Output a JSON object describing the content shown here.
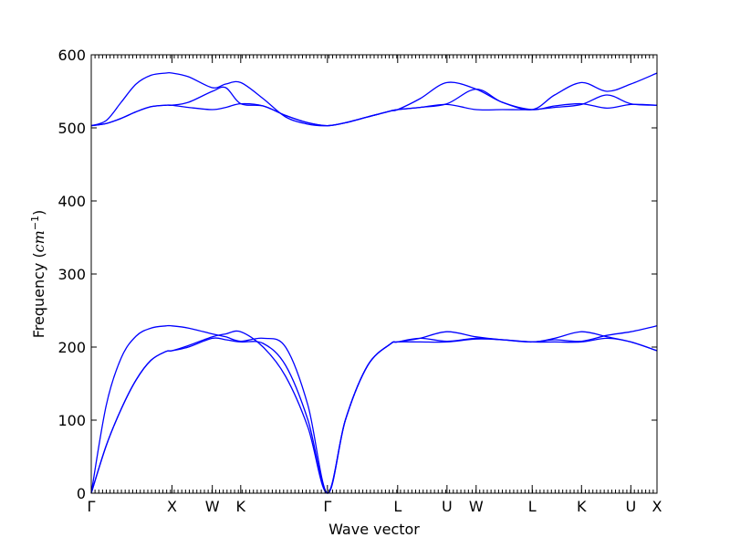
{
  "chart_data": {
    "type": "line",
    "title": "",
    "xlabel": "Wave vector",
    "ylabel_prefix": "Frequency (",
    "ylabel_unit": "cm",
    "ylabel_exp": "−1",
    "ylabel_suffix": ")",
    "ylim": [
      0,
      600
    ],
    "yticks": [
      0,
      100,
      200,
      300,
      400,
      500,
      600
    ],
    "xlim": [
      0,
      7.57
    ],
    "grid": false,
    "line_color": "#0000ff",
    "high_symmetry_points": [
      {
        "label": "Γ",
        "x": 0.0
      },
      {
        "label": "X",
        "x": 1.08
      },
      {
        "label": "W",
        "x": 1.62
      },
      {
        "label": "K",
        "x": 2.0
      },
      {
        "label": "Γ",
        "x": 3.16
      },
      {
        "label": "L",
        "x": 4.1
      },
      {
        "label": "U",
        "x": 4.76
      },
      {
        "label": "W",
        "x": 5.15
      },
      {
        "label": "L",
        "x": 5.9
      },
      {
        "label": "K",
        "x": 6.56
      },
      {
        "label": "U",
        "x": 7.22
      },
      {
        "label": "X",
        "x": 7.57
      }
    ],
    "series": [
      {
        "x": [
          0,
          0.2,
          0.4,
          0.6,
          0.8,
          1.0,
          1.08,
          1.3,
          1.62,
          1.8,
          2.0,
          2.3,
          2.6,
          2.9,
          3.16,
          3.4,
          3.7,
          4.0,
          4.1,
          4.4,
          4.76,
          5.15,
          5.5,
          5.9,
          6.2,
          6.56,
          6.9,
          7.22,
          7.57
        ],
        "values": [
          0,
          65,
          115,
          155,
          182,
          194,
          195,
          200,
          212,
          210,
          207,
          205,
          175,
          100,
          0,
          100,
          175,
          204,
          207,
          207,
          207,
          211,
          210,
          207,
          207,
          207,
          212,
          207,
          195
        ]
      },
      {
        "x": [
          0,
          0.2,
          0.4,
          0.6,
          0.8,
          1.0,
          1.08,
          1.3,
          1.62,
          1.8,
          2.0,
          2.3,
          2.6,
          2.9,
          3.16,
          3.4,
          3.7,
          4.0,
          4.1,
          4.4,
          4.76,
          5.15,
          5.5,
          5.9,
          6.2,
          6.56,
          6.9,
          7.22,
          7.57
        ],
        "values": [
          0,
          65,
          115,
          155,
          182,
          194,
          195,
          202,
          214,
          218,
          221,
          200,
          160,
          90,
          0,
          100,
          175,
          204,
          207,
          212,
          221,
          214,
          210,
          207,
          212,
          221,
          214,
          207,
          195
        ]
      },
      {
        "x": [
          0,
          0.2,
          0.4,
          0.6,
          0.8,
          1.0,
          1.08,
          1.3,
          1.62,
          1.8,
          2.0,
          2.3,
          2.6,
          2.9,
          3.16,
          3.4,
          3.7,
          4.0,
          4.1,
          4.4,
          4.76,
          5.15,
          5.5,
          5.9,
          6.2,
          6.56,
          6.9,
          7.22,
          7.57
        ],
        "values": [
          0,
          120,
          185,
          215,
          226,
          229,
          229,
          226,
          218,
          214,
          208,
          212,
          200,
          120,
          0,
          100,
          175,
          204,
          207,
          212,
          208,
          212,
          210,
          207,
          210,
          208,
          216,
          221,
          229
        ]
      },
      {
        "x": [
          0,
          0.2,
          0.4,
          0.6,
          0.8,
          1.0,
          1.08,
          1.3,
          1.62,
          1.8,
          2.0,
          2.3,
          2.6,
          2.9,
          3.16,
          3.4,
          3.7,
          4.0,
          4.1,
          4.4,
          4.76,
          5.15,
          5.5,
          5.9,
          6.2,
          6.56,
          6.9,
          7.22,
          7.57
        ],
        "values": [
          503,
          506,
          513,
          522,
          529,
          531,
          531,
          528,
          525,
          528,
          533,
          530,
          517,
          507,
          503,
          507,
          515,
          523,
          525,
          528,
          532,
          525,
          525,
          525,
          528,
          532,
          545,
          533,
          531
        ]
      },
      {
        "x": [
          0,
          0.2,
          0.4,
          0.6,
          0.8,
          1.0,
          1.08,
          1.3,
          1.62,
          1.8,
          2.0,
          2.3,
          2.6,
          2.9,
          3.16,
          3.4,
          3.7,
          4.0,
          4.1,
          4.4,
          4.76,
          5.15,
          5.5,
          5.9,
          6.2,
          6.56,
          6.9,
          7.22,
          7.57
        ],
        "values": [
          503,
          506,
          513,
          522,
          529,
          531,
          531,
          535,
          550,
          555,
          533,
          530,
          517,
          507,
          503,
          507,
          515,
          523,
          525,
          528,
          533,
          553,
          535,
          525,
          530,
          533,
          527,
          532,
          531
        ]
      },
      {
        "x": [
          0,
          0.2,
          0.4,
          0.6,
          0.8,
          1.0,
          1.08,
          1.3,
          1.62,
          1.8,
          2.0,
          2.3,
          2.6,
          2.9,
          3.16,
          3.4,
          3.7,
          4.0,
          4.1,
          4.4,
          4.76,
          5.15,
          5.5,
          5.9,
          6.2,
          6.56,
          6.9,
          7.22,
          7.57
        ],
        "values": [
          503,
          510,
          535,
          560,
          572,
          575,
          575,
          570,
          555,
          560,
          562,
          540,
          515,
          505,
          503,
          507,
          515,
          523,
          525,
          540,
          562,
          553,
          535,
          525,
          545,
          562,
          550,
          560,
          575
        ]
      }
    ]
  }
}
